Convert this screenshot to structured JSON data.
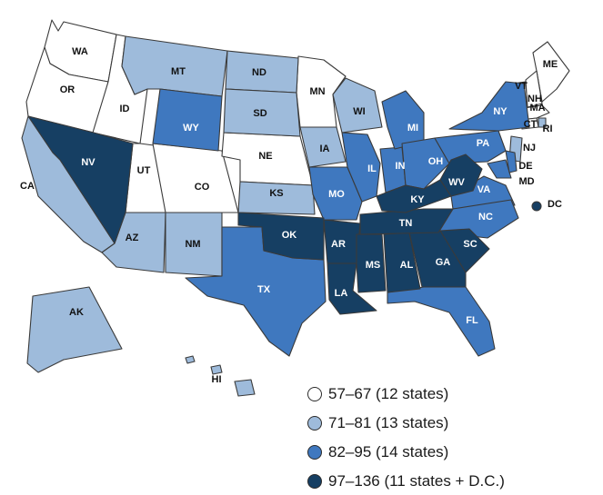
{
  "colors": {
    "tier1": "#ffffff",
    "tier2": "#9ebbdb",
    "tier3": "#3f78bf",
    "tier4": "#163f63"
  },
  "legend": [
    {
      "tier": "tier1",
      "label": "57–67 (12 states)"
    },
    {
      "tier": "tier2",
      "label": "71–81 (13 states)"
    },
    {
      "tier": "tier3",
      "label": "82–95 (14 states)"
    },
    {
      "tier": "tier4",
      "label": "97–136 (11 states + D.C.)"
    }
  ],
  "states": [
    {
      "abbr": "WA",
      "tier": "tier1"
    },
    {
      "abbr": "OR",
      "tier": "tier1"
    },
    {
      "abbr": "ID",
      "tier": "tier1"
    },
    {
      "abbr": "UT",
      "tier": "tier1"
    },
    {
      "abbr": "CO",
      "tier": "tier1"
    },
    {
      "abbr": "NE",
      "tier": "tier1"
    },
    {
      "abbr": "MN",
      "tier": "tier1"
    },
    {
      "abbr": "ME",
      "tier": "tier1"
    },
    {
      "abbr": "VT",
      "tier": "tier1"
    },
    {
      "abbr": "NH",
      "tier": "tier1"
    },
    {
      "abbr": "MA",
      "tier": "tier1"
    },
    {
      "abbr": "CT",
      "tier": "tier1"
    },
    {
      "abbr": "MT",
      "tier": "tier2"
    },
    {
      "abbr": "ND",
      "tier": "tier2"
    },
    {
      "abbr": "SD",
      "tier": "tier2"
    },
    {
      "abbr": "IA",
      "tier": "tier2"
    },
    {
      "abbr": "WI",
      "tier": "tier2"
    },
    {
      "abbr": "KS",
      "tier": "tier2"
    },
    {
      "abbr": "CA",
      "tier": "tier2"
    },
    {
      "abbr": "AZ",
      "tier": "tier2"
    },
    {
      "abbr": "NM",
      "tier": "tier2"
    },
    {
      "abbr": "AK",
      "tier": "tier2"
    },
    {
      "abbr": "HI",
      "tier": "tier2"
    },
    {
      "abbr": "NJ",
      "tier": "tier2"
    },
    {
      "abbr": "RI",
      "tier": "tier2"
    },
    {
      "abbr": "WY",
      "tier": "tier3"
    },
    {
      "abbr": "MO",
      "tier": "tier3"
    },
    {
      "abbr": "IL",
      "tier": "tier3"
    },
    {
      "abbr": "IN",
      "tier": "tier3"
    },
    {
      "abbr": "MI",
      "tier": "tier3"
    },
    {
      "abbr": "OH",
      "tier": "tier3"
    },
    {
      "abbr": "PA",
      "tier": "tier3"
    },
    {
      "abbr": "NY",
      "tier": "tier3"
    },
    {
      "abbr": "VA",
      "tier": "tier3"
    },
    {
      "abbr": "NC",
      "tier": "tier3"
    },
    {
      "abbr": "TX",
      "tier": "tier3"
    },
    {
      "abbr": "FL",
      "tier": "tier3"
    },
    {
      "abbr": "MD",
      "tier": "tier3"
    },
    {
      "abbr": "DE",
      "tier": "tier3"
    },
    {
      "abbr": "NV",
      "tier": "tier4"
    },
    {
      "abbr": "OK",
      "tier": "tier4"
    },
    {
      "abbr": "AR",
      "tier": "tier4"
    },
    {
      "abbr": "LA",
      "tier": "tier4"
    },
    {
      "abbr": "MS",
      "tier": "tier4"
    },
    {
      "abbr": "AL",
      "tier": "tier4"
    },
    {
      "abbr": "GA",
      "tier": "tier4"
    },
    {
      "abbr": "SC",
      "tier": "tier4"
    },
    {
      "abbr": "TN",
      "tier": "tier4"
    },
    {
      "abbr": "KY",
      "tier": "tier4"
    },
    {
      "abbr": "WV",
      "tier": "tier4"
    },
    {
      "abbr": "DC",
      "tier": "tier4"
    }
  ]
}
